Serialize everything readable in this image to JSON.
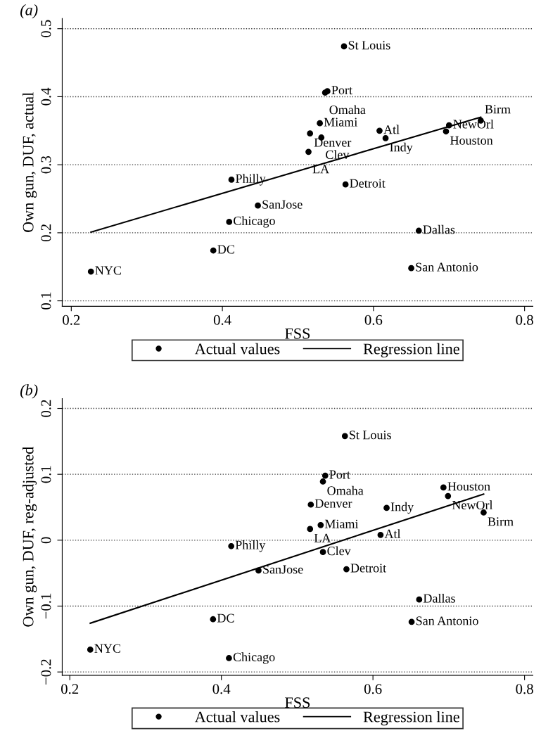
{
  "chart_data": [
    {
      "type": "scatter",
      "title": "(a)",
      "xlabel": "FSS",
      "ylabel": "Own gun, DUF, actual",
      "xlim": [
        0.188,
        0.811
      ],
      "ylim": [
        0.092,
        0.515
      ],
      "xticks": [
        0.2,
        0.4,
        0.6,
        0.8
      ],
      "yticks": [
        0.1,
        0.2,
        0.3,
        0.4,
        0.5
      ],
      "grid": "y",
      "legend": "bottom",
      "marker": "circle",
      "series": [
        {
          "name": "Actual values",
          "type": "scatter",
          "color": "#000000",
          "x": [
            0.561,
            0.539,
            0.536,
            0.529,
            0.516,
            0.531,
            0.514,
            0.608,
            0.616,
            0.7,
            0.696,
            0.742,
            0.412,
            0.563,
            0.447,
            0.409,
            0.66,
            0.388,
            0.65,
            0.226
          ],
          "values": [
            0.474,
            0.408,
            0.406,
            0.361,
            0.346,
            0.34,
            0.319,
            0.35,
            0.339,
            0.358,
            0.349,
            0.365,
            0.278,
            0.271,
            0.24,
            0.216,
            0.203,
            0.174,
            0.148,
            0.143
          ]
        },
        {
          "name": "Regression line",
          "type": "line",
          "color": "#000000",
          "marker": "none",
          "x": [
            0.226,
            0.742
          ],
          "values": [
            0.201,
            0.37
          ]
        }
      ],
      "annotations": [
        {
          "text": "St Louis",
          "x": 0.561,
          "y": 0.474
        },
        {
          "text": "Port",
          "x": 0.539,
          "y": 0.408
        },
        {
          "text": "Omaha",
          "x": 0.536,
          "y": 0.406
        },
        {
          "text": "Miami",
          "x": 0.529,
          "y": 0.361
        },
        {
          "text": "Denver",
          "x": 0.516,
          "y": 0.346
        },
        {
          "text": "Clev",
          "x": 0.531,
          "y": 0.34
        },
        {
          "text": "LA",
          "x": 0.514,
          "y": 0.319
        },
        {
          "text": "Atl",
          "x": 0.608,
          "y": 0.35
        },
        {
          "text": "Indy",
          "x": 0.616,
          "y": 0.339
        },
        {
          "text": "NewOrl",
          "x": 0.7,
          "y": 0.358
        },
        {
          "text": "Houston",
          "x": 0.696,
          "y": 0.349
        },
        {
          "text": "Birm",
          "x": 0.742,
          "y": 0.365
        },
        {
          "text": "Philly",
          "x": 0.412,
          "y": 0.278
        },
        {
          "text": "Detroit",
          "x": 0.563,
          "y": 0.271
        },
        {
          "text": "SanJose",
          "x": 0.447,
          "y": 0.24
        },
        {
          "text": "Chicago",
          "x": 0.409,
          "y": 0.216
        },
        {
          "text": "Dallas",
          "x": 0.66,
          "y": 0.203
        },
        {
          "text": "DC",
          "x": 0.388,
          "y": 0.174
        },
        {
          "text": "San Antonio",
          "x": 0.65,
          "y": 0.148
        },
        {
          "text": "NYC",
          "x": 0.226,
          "y": 0.143
        }
      ]
    },
    {
      "type": "scatter",
      "title": "(b)",
      "xlabel": "FSS",
      "ylabel": "Own gun, DUF, reg-adjusted",
      "xlim": [
        0.19,
        0.811
      ],
      "ylim": [
        -0.205,
        0.215
      ],
      "xticks": [
        0.2,
        0.4,
        0.6,
        0.8
      ],
      "yticks": [
        {
          "value": -0.2,
          "label": "−0.2"
        },
        {
          "value": -0.1,
          "label": "−0.1"
        },
        0,
        0.1,
        0.2
      ],
      "grid": "y",
      "legend": "bottom",
      "marker": "circle",
      "series": [
        {
          "name": "Actual values",
          "type": "scatter",
          "color": "#000000",
          "x": [
            0.563,
            0.537,
            0.534,
            0.693,
            0.699,
            0.518,
            0.618,
            0.746,
            0.531,
            0.517,
            0.61,
            0.413,
            0.534,
            0.449,
            0.565,
            0.661,
            0.651,
            0.389,
            0.227,
            0.41
          ],
          "values": [
            0.158,
            0.098,
            0.089,
            0.08,
            0.067,
            0.054,
            0.049,
            0.042,
            0.023,
            0.017,
            0.008,
            -0.009,
            -0.018,
            -0.046,
            -0.044,
            -0.09,
            -0.124,
            -0.12,
            -0.166,
            -0.179
          ]
        },
        {
          "name": "Regression line",
          "type": "line",
          "color": "#000000",
          "marker": "none",
          "x": [
            0.227,
            0.746
          ],
          "values": [
            -0.126,
            0.07
          ]
        }
      ],
      "annotations": [
        {
          "text": "St Louis",
          "x": 0.563,
          "y": 0.158
        },
        {
          "text": "Port",
          "x": 0.537,
          "y": 0.098
        },
        {
          "text": "Omaha",
          "x": 0.534,
          "y": 0.089
        },
        {
          "text": "Houston",
          "x": 0.693,
          "y": 0.08
        },
        {
          "text": "NewOrl",
          "x": 0.699,
          "y": 0.067
        },
        {
          "text": "Denver",
          "x": 0.518,
          "y": 0.054
        },
        {
          "text": "Indy",
          "x": 0.618,
          "y": 0.049
        },
        {
          "text": "Birm",
          "x": 0.746,
          "y": 0.042
        },
        {
          "text": "Miami",
          "x": 0.531,
          "y": 0.023
        },
        {
          "text": "LA",
          "x": 0.517,
          "y": 0.017
        },
        {
          "text": "Atl",
          "x": 0.61,
          "y": 0.008
        },
        {
          "text": "Philly",
          "x": 0.413,
          "y": -0.009
        },
        {
          "text": "Clev",
          "x": 0.534,
          "y": -0.018
        },
        {
          "text": "SanJose",
          "x": 0.449,
          "y": -0.046
        },
        {
          "text": "Detroit",
          "x": 0.565,
          "y": -0.044
        },
        {
          "text": "Dallas",
          "x": 0.661,
          "y": -0.09
        },
        {
          "text": "San Antonio",
          "x": 0.651,
          "y": -0.124
        },
        {
          "text": "DC",
          "x": 0.389,
          "y": -0.12
        },
        {
          "text": "NYC",
          "x": 0.227,
          "y": -0.166
        },
        {
          "text": "Chicago",
          "x": 0.41,
          "y": -0.179
        }
      ]
    }
  ]
}
